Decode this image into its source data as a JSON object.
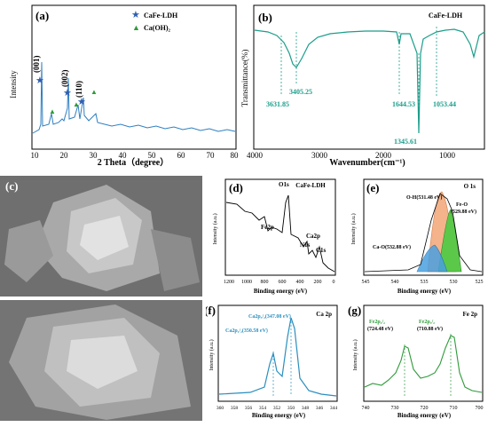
{
  "panels": {
    "a": {
      "label": "(a)",
      "xlabel": "2 Theta（degree）",
      "ylabel": "Intensity",
      "xticks": [
        "10",
        "20",
        "30",
        "40",
        "50",
        "60",
        "70",
        "80"
      ],
      "legend": [
        "CaFe-LDH",
        "Ca(OH)₂"
      ],
      "peaks": [
        "(001)",
        "(002)",
        "(110)"
      ]
    },
    "b": {
      "label": "(b)",
      "title": "CaFe-LDH",
      "xlabel": "Wavenumber(cm⁻¹)",
      "ylabel": "Transmittance(%)",
      "xticks": [
        "4000",
        "3000",
        "2000",
        "1000"
      ],
      "annotations": [
        "3631.85",
        "3405.25",
        "1644.53",
        "1053.44",
        "1345.61"
      ]
    },
    "c": {
      "label": "(c)"
    },
    "d": {
      "label": "(d)",
      "title": "CaFe-LDH",
      "xlabel": "Binding energy (eV)",
      "ylabel": "Intensity (a.u.)",
      "xticks": [
        "1200",
        "1000",
        "800",
        "600",
        "400",
        "200",
        "0"
      ],
      "annotations": [
        "O1s",
        "Fe2p",
        "Ca2p",
        "N1s",
        "C1s"
      ]
    },
    "e": {
      "label": "(e)",
      "title": "O 1s",
      "xlabel": "Binding energy (eV)",
      "ylabel": "Intensity (a.u.)",
      "xticks": [
        "545",
        "540",
        "535",
        "530",
        "525"
      ],
      "annotations": [
        "O-H(531.48 eV)",
        "Fe-O",
        "(529.88 eV)",
        "Ca-O(532.88 eV)"
      ]
    },
    "f": {
      "label": "(f)",
      "title": "Ca 2p",
      "xlabel": "Binding energy (eV)",
      "ylabel": "Intensity (a.u.)",
      "xticks": [
        "360",
        "358",
        "356",
        "354",
        "352",
        "350",
        "348",
        "346",
        "344"
      ],
      "annotations": [
        "Ca2p₃/₂(347.08 eV)",
        "Ca2p₁/₂(350.58 eV)"
      ]
    },
    "g": {
      "label": "(g)",
      "title": "Fe 2p",
      "xlabel": "Binding energy (eV)",
      "ylabel": "Intensity (a.u.)",
      "xticks": [
        "740",
        "730",
        "720",
        "710",
        "700"
      ],
      "annotations": [
        "Fe2p₁/₂",
        "(724.48 eV)",
        "Fe2p₃/₂",
        "(710.88 eV)"
      ]
    }
  },
  "colors": {
    "xrd": "#2f7fc1",
    "ftir": "#1b9e8a",
    "xps": "#2a8fbf",
    "ldh_star": "#2f5fb0",
    "caoh_tri": "#2e9b3a",
    "oh": "#f4b38a",
    "feo": "#5cc84a",
    "cao": "#4aa0e0"
  }
}
